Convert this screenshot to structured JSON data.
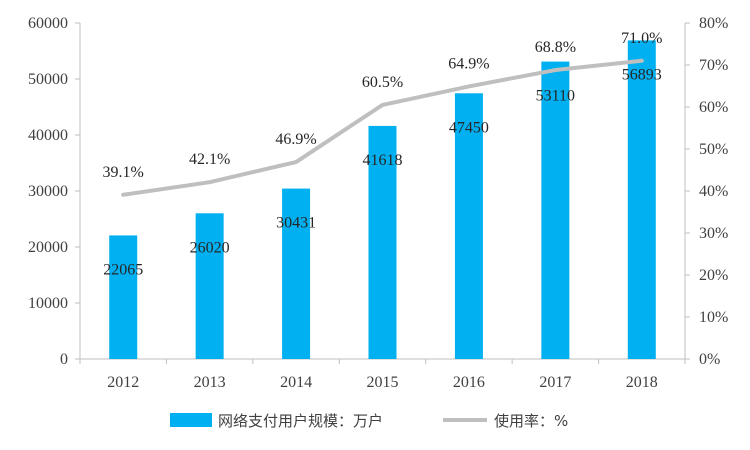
{
  "chart_data": {
    "type": "bar+line",
    "categories": [
      "2012",
      "2013",
      "2014",
      "2015",
      "2016",
      "2017",
      "2018"
    ],
    "series": [
      {
        "name": "网络支付用户规模：万户",
        "type": "bar",
        "axis": "left",
        "values": [
          22065,
          26020,
          30431,
          41618,
          47450,
          53110,
          56893
        ],
        "labels": [
          "22065",
          "26020",
          "30431",
          "41618",
          "47450",
          "53110",
          "56893"
        ],
        "color": "#00B0F0"
      },
      {
        "name": "使用率：%",
        "type": "line",
        "axis": "right",
        "values": [
          39.1,
          42.1,
          46.9,
          60.5,
          64.9,
          68.8,
          71.0
        ],
        "labels": [
          "39.1%",
          "42.1%",
          "46.9%",
          "60.5%",
          "64.9%",
          "68.8%",
          "71.0%"
        ],
        "color": "#BFBFBF"
      }
    ],
    "y_left": {
      "min": 0,
      "max": 60000,
      "ticks": [
        "0",
        "10000",
        "20000",
        "30000",
        "40000",
        "50000",
        "60000"
      ]
    },
    "y_right": {
      "min": 0,
      "max": 80,
      "ticks": [
        "0%",
        "10%",
        "20%",
        "30%",
        "40%",
        "50%",
        "60%",
        "70%",
        "80%"
      ]
    },
    "grid": false,
    "legend_position": "bottom",
    "title": "",
    "xlabel": "",
    "ylabel": ""
  }
}
